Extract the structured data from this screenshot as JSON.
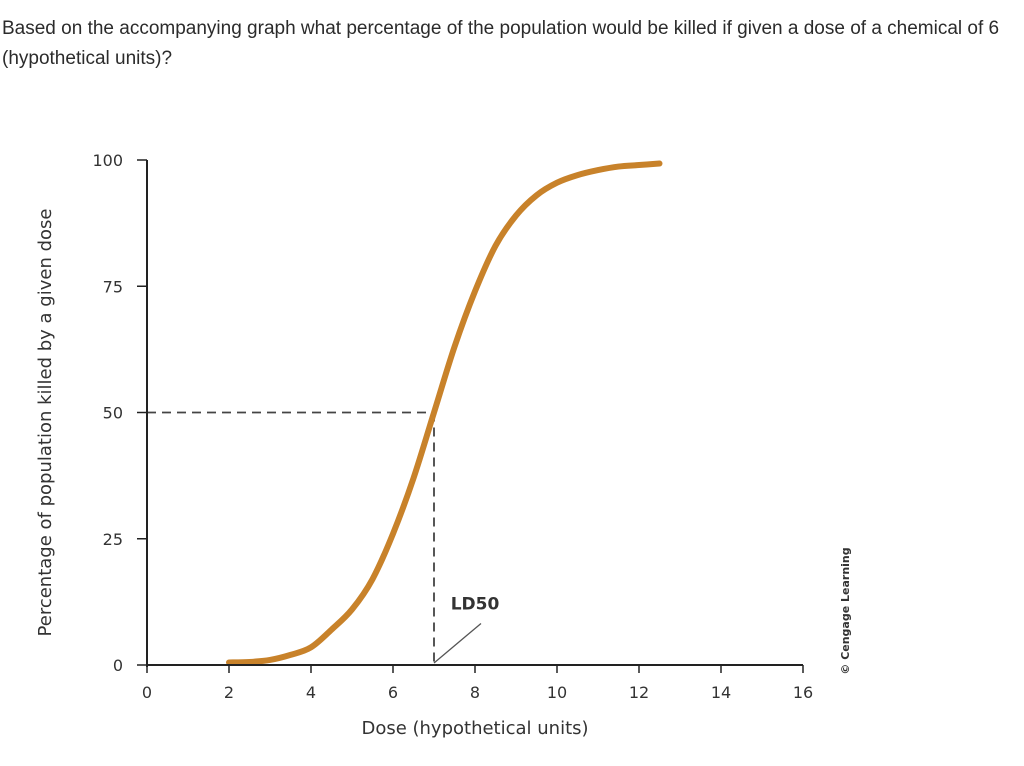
{
  "question": {
    "text": "Based on the accompanying graph what percentage of the population would be killed if given a dose of a chemical of 6 (hypothetical units)?"
  },
  "chart_data": {
    "type": "line",
    "title": "",
    "xlabel": "Dose (hypothetical units)",
    "ylabel": "Percentage of population killed by a given dose",
    "xlim": [
      0,
      16
    ],
    "ylim": [
      0,
      100
    ],
    "x_ticks": [
      "0",
      "2",
      "4",
      "6",
      "8",
      "10",
      "12",
      "14",
      "16"
    ],
    "y_ticks": [
      "0",
      "25",
      "50",
      "75",
      "100"
    ],
    "grid": false,
    "series": [
      {
        "color": "#c8822a",
        "x": [
          2,
          2.5,
          3,
          3.5,
          4,
          4.5,
          5,
          5.5,
          6,
          6.5,
          7,
          7.5,
          8,
          8.5,
          9,
          9.5,
          10,
          10.5,
          11,
          11.5,
          12,
          12.5
        ],
        "y": [
          0.5,
          0.6,
          1,
          2,
          3.5,
          7,
          11,
          17,
          26,
          37,
          50,
          63,
          74,
          83,
          89,
          93,
          95.5,
          97,
          98,
          98.7,
          99,
          99.3
        ]
      }
    ],
    "reference_lines": {
      "ld50_x": 7,
      "ld50_y": 50,
      "style": "dashed",
      "color": "#444444"
    },
    "annotations": [
      {
        "text": "LD50",
        "x": 8,
        "y": 11,
        "points_to": [
          7,
          0
        ]
      }
    ],
    "credit": "© Cengage Learning"
  }
}
